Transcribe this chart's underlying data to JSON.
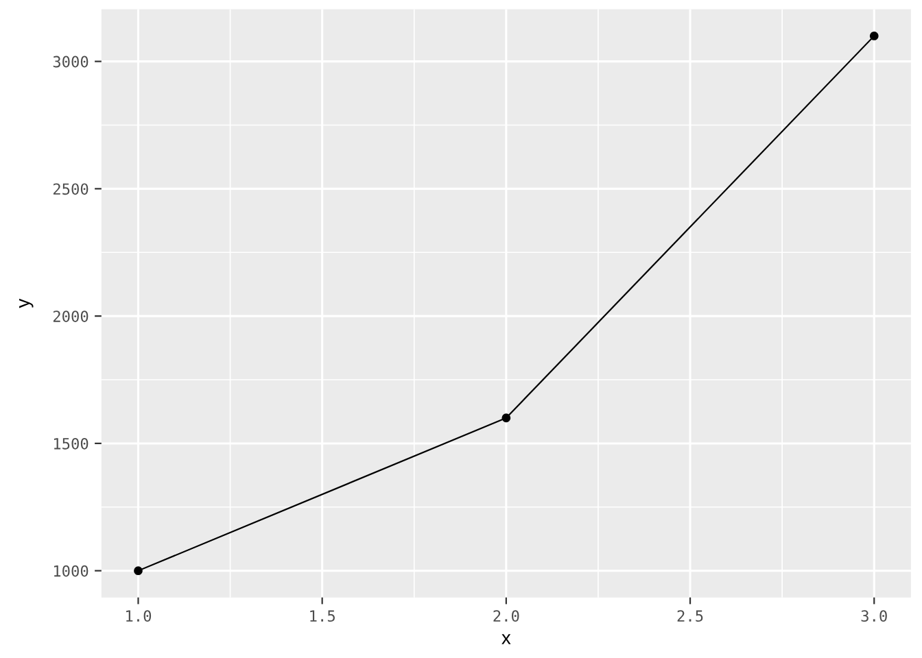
{
  "chart_data": {
    "type": "line",
    "xlabel": "x",
    "ylabel": "y",
    "x": [
      1,
      2,
      3
    ],
    "series": [
      {
        "color": "#000000",
        "values": [
          1000,
          1600,
          3100
        ]
      }
    ],
    "xlim": [
      0.9,
      3.1
    ],
    "ylim": [
      895,
      3205
    ],
    "xticks": [
      {
        "value": 1,
        "label": "1.0"
      },
      {
        "value": 1.5,
        "label": "1.5"
      },
      {
        "value": 2,
        "label": "2.0"
      },
      {
        "value": 2.5,
        "label": "2.5"
      },
      {
        "value": 3,
        "label": "3.0"
      }
    ],
    "yticks": [
      1000,
      1500,
      2000,
      2500,
      3000
    ],
    "grid": true,
    "marker": "circle",
    "line_style": "solid"
  }
}
